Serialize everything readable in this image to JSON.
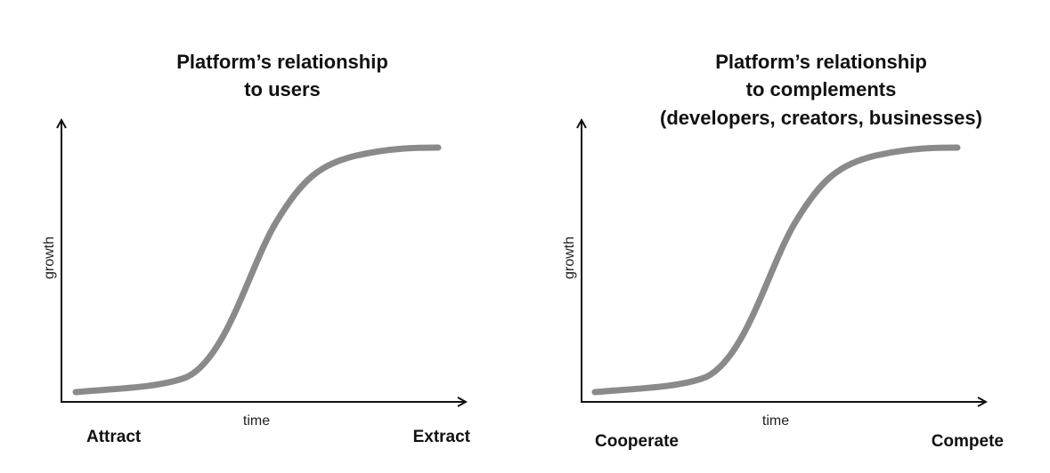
{
  "colors": {
    "curve": "#8a8a8a",
    "axis": "#111111",
    "background": "#ffffff"
  },
  "panels": [
    {
      "title_lines": [
        "Platform’s relationship",
        "to users"
      ],
      "x_axis_label": "time",
      "y_axis_label": "growth",
      "start_label": "Attract",
      "end_label": "Extract",
      "curve_shape": "s-curve"
    },
    {
      "title_lines": [
        "Platform’s relationship",
        "to complements",
        "(developers, creators, businesses)"
      ],
      "x_axis_label": "time",
      "y_axis_label": "growth",
      "start_label": "Cooperate",
      "end_label": "Compete",
      "curve_shape": "s-curve"
    }
  ]
}
